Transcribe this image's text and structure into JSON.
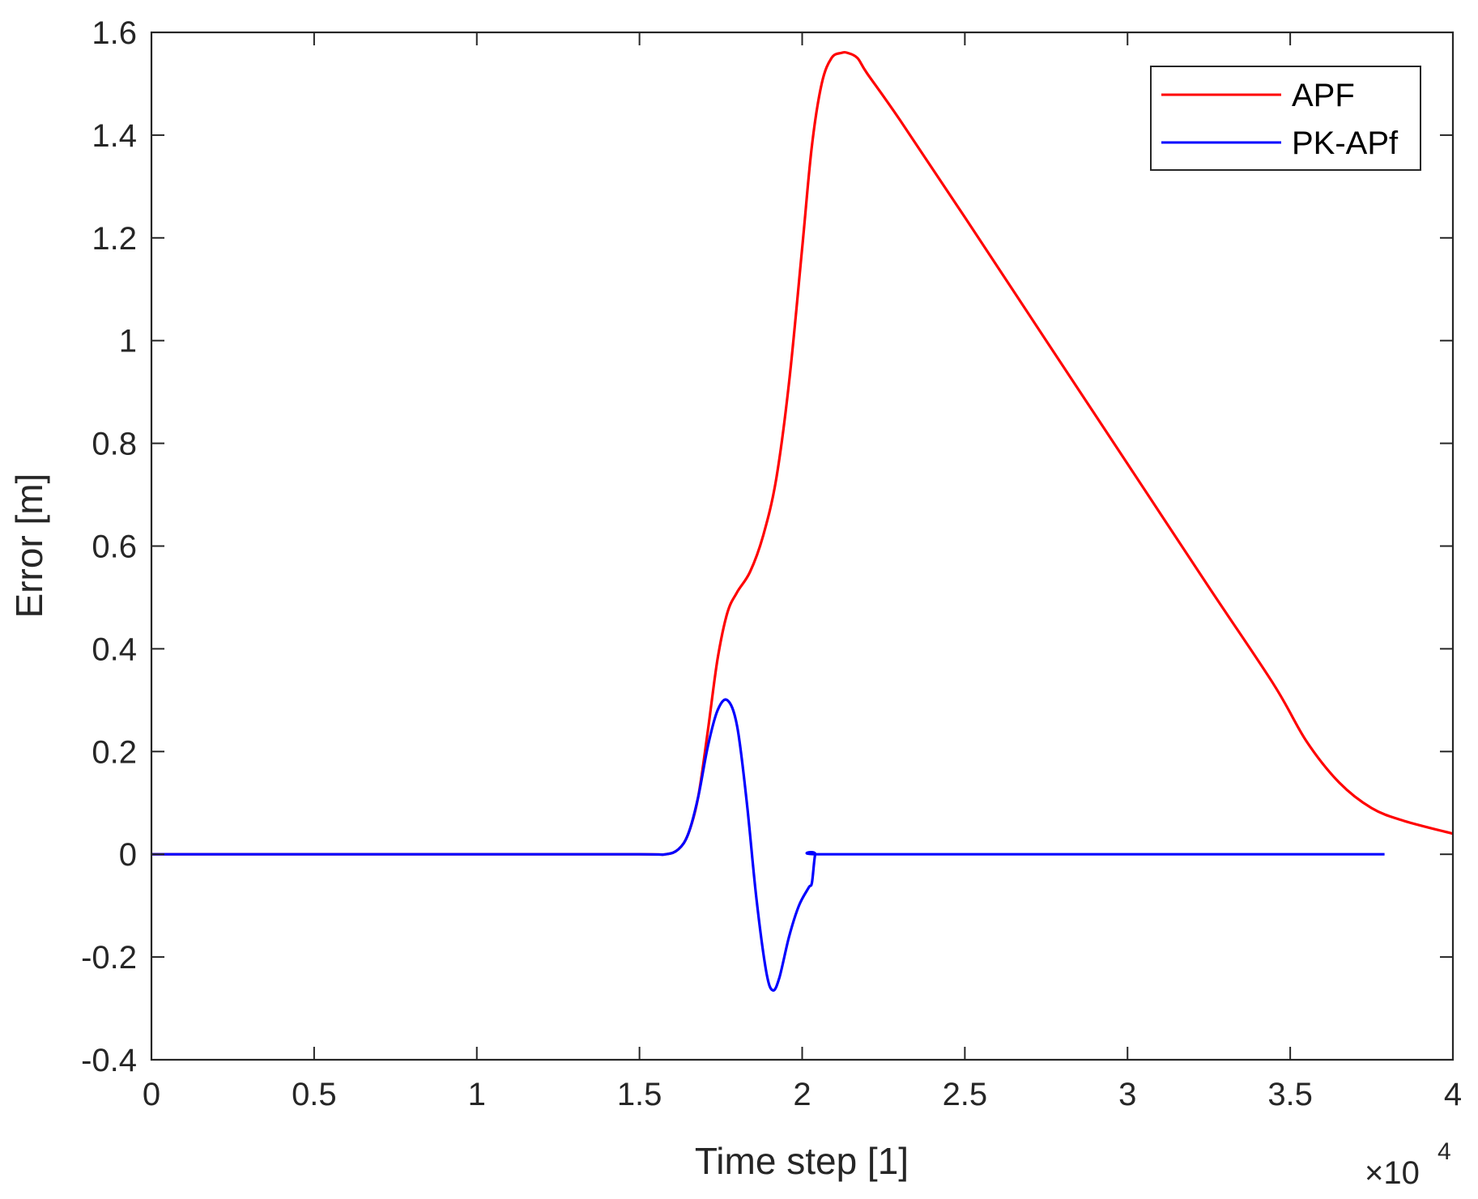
{
  "chart_data": {
    "type": "line",
    "title": "",
    "xlabel": "Time step [1]",
    "ylabel": "Error [m]",
    "x_multiplier": "×10",
    "x_multiplier_exp": "4",
    "xlim": [
      0,
      4
    ],
    "ylim": [
      -0.4,
      1.6
    ],
    "xticks": [
      "0",
      "0.5",
      "1",
      "1.5",
      "2",
      "2.5",
      "3",
      "3.5",
      "4"
    ],
    "yticks": [
      "-0.4",
      "-0.2",
      "0",
      "0.2",
      "0.4",
      "0.6",
      "0.8",
      "1",
      "1.2",
      "1.4",
      "1.6"
    ],
    "grid": false,
    "legend_position": "northeast",
    "series": [
      {
        "name": "APF",
        "color": "#ff0000",
        "x": [
          0,
          0.5,
          1.0,
          1.5,
          1.58,
          1.62,
          1.65,
          1.68,
          1.71,
          1.74,
          1.77,
          1.8,
          1.84,
          1.88,
          1.92,
          1.96,
          2.0,
          2.03,
          2.06,
          2.09,
          2.12,
          2.14,
          2.17,
          2.2,
          2.3,
          2.5,
          2.75,
          3.0,
          3.25,
          3.45,
          3.55,
          3.65,
          3.75,
          3.85,
          4.0
        ],
        "y": [
          0,
          0,
          0,
          0,
          0.0,
          0.01,
          0.04,
          0.11,
          0.24,
          0.38,
          0.47,
          0.51,
          0.55,
          0.62,
          0.73,
          0.92,
          1.18,
          1.38,
          1.5,
          1.55,
          1.56,
          1.56,
          1.55,
          1.52,
          1.43,
          1.24,
          1.0,
          0.76,
          0.52,
          0.33,
          0.22,
          0.14,
          0.09,
          0.065,
          0.04
        ]
      },
      {
        "name": "PK-APf",
        "color": "#0000ff",
        "x": [
          0,
          0.5,
          1.0,
          1.5,
          1.58,
          1.62,
          1.65,
          1.68,
          1.71,
          1.74,
          1.77,
          1.8,
          1.83,
          1.86,
          1.89,
          1.91,
          1.93,
          1.96,
          1.99,
          2.02,
          2.03,
          2.04,
          2.05,
          2.5,
          3.0,
          3.5,
          3.79
        ],
        "y": [
          0,
          0,
          0,
          0,
          0.0,
          0.01,
          0.04,
          0.11,
          0.21,
          0.28,
          0.3,
          0.25,
          0.1,
          -0.09,
          -0.23,
          -0.265,
          -0.24,
          -0.16,
          -0.1,
          -0.065,
          -0.055,
          0,
          0,
          0,
          0,
          0,
          0
        ]
      }
    ]
  }
}
